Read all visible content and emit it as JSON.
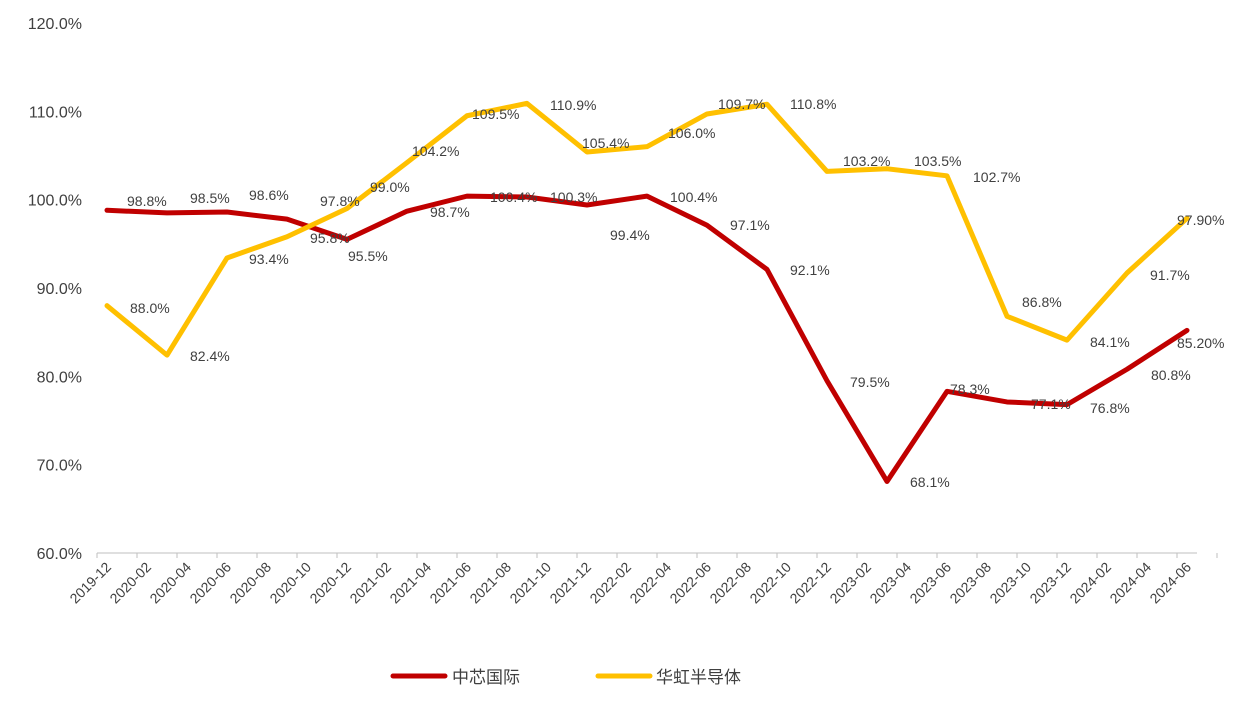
{
  "chart_data": {
    "type": "line",
    "title": "",
    "xlabel": "",
    "ylabel": "",
    "ylim": [
      60,
      120
    ],
    "y_ticks": [
      "60.0%",
      "70.0%",
      "80.0%",
      "90.0%",
      "100.0%",
      "110.0%",
      "120.0%"
    ],
    "x_tick_labels": [
      "2019-12",
      "2020-02",
      "2020-04",
      "2020-06",
      "2020-08",
      "2020-10",
      "2020-12",
      "2021-02",
      "2021-04",
      "2021-06",
      "2021-08",
      "2021-10",
      "2021-12",
      "2022-02",
      "2022-04",
      "2022-06",
      "2022-08",
      "2022-10",
      "2022-12",
      "2023-02",
      "2023-04",
      "2023-06",
      "2023-08",
      "2023-10",
      "2023-12",
      "2024-02",
      "2024-04",
      "2024-06"
    ],
    "x": [
      "2019-12",
      "2020-03",
      "2020-06",
      "2020-09",
      "2020-12",
      "2021-03",
      "2021-06",
      "2021-09",
      "2021-12",
      "2022-03",
      "2022-06",
      "2022-09",
      "2022-12",
      "2023-03",
      "2023-06",
      "2023-09",
      "2023-12",
      "2024-03",
      "2024-06"
    ],
    "grid": false,
    "legend_position": "bottom",
    "series": [
      {
        "name": "中芯国际",
        "color": "#C00000",
        "values": [
          98.8,
          98.5,
          98.6,
          97.8,
          95.5,
          98.7,
          100.4,
          100.3,
          99.4,
          100.4,
          97.1,
          92.1,
          79.5,
          68.1,
          78.3,
          77.1,
          76.8,
          80.8,
          85.2
        ],
        "labels": [
          "98.8%",
          "98.5%",
          "98.6%",
          "97.8%",
          "95.5%",
          "98.7%",
          "100.4%",
          "100.3%",
          "99.4%",
          "100.4%",
          "97.1%",
          "92.1%",
          "79.5%",
          "68.1%",
          "78.3%",
          "77.1%",
          "76.8%",
          "80.8%",
          "85.20%"
        ]
      },
      {
        "name": "华虹半导体",
        "color": "#FFC000",
        "values": [
          88.0,
          82.4,
          93.4,
          95.8,
          99.0,
          104.2,
          109.5,
          110.9,
          105.4,
          106.0,
          109.7,
          110.8,
          103.2,
          103.5,
          102.7,
          86.8,
          84.1,
          91.7,
          97.9
        ],
        "labels": [
          "88.0%",
          "82.4%",
          "93.4%",
          "95.8%",
          "99.0%",
          "104.2%",
          "109.5%",
          "110.9%",
          "105.4%",
          "106.0%",
          "109.7%",
          "110.8%",
          "103.2%",
          "103.5%",
          "102.7%",
          "86.8%",
          "84.1%",
          "91.7%",
          "97.90%"
        ]
      }
    ]
  }
}
